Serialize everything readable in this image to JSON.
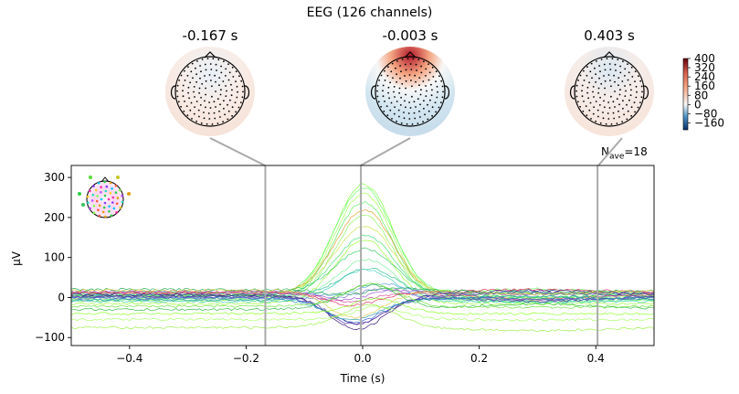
{
  "figure": {
    "suptitle": "EEG (126 channels)",
    "nave_base": "N",
    "nave_sub": "ave",
    "nave_value": "=18"
  },
  "topomaps": [
    {
      "time_label": "-0.167 s",
      "time": -0.167
    },
    {
      "time_label": "-0.003 s",
      "time": -0.003
    },
    {
      "time_label": "0.403 s",
      "time": 0.403
    }
  ],
  "colorbar": {
    "ticks": [
      "400",
      "320",
      "240",
      "160",
      "80",
      "0",
      "−80",
      "−160"
    ],
    "tick_values": [
      400,
      320,
      240,
      160,
      80,
      0,
      -80,
      -160
    ],
    "range": [
      -220,
      400
    ],
    "colors": {
      "low": "#08306b",
      "mid": "#f7f7f7",
      "high": "#67000d"
    }
  },
  "chart_data": {
    "type": "line",
    "title": "EEG (126 channels)",
    "xlabel": "Time (s)",
    "ylabel": "µV",
    "xlim": [
      -0.5,
      0.5
    ],
    "ylim": [
      -120,
      330
    ],
    "x_ticks": [
      -0.4,
      -0.2,
      0.0,
      0.2,
      0.4
    ],
    "x_tick_labels": [
      "−0.4",
      "−0.2",
      "0.0",
      "0.2",
      "0.4"
    ],
    "y_ticks": [
      -100,
      0,
      100,
      200,
      300
    ],
    "y_tick_labels": [
      "−100",
      "0",
      "100",
      "200",
      "300"
    ],
    "vlines": [
      -0.167,
      -0.003,
      0.403
    ],
    "grid": false,
    "series_note_count": 126,
    "series": [
      {
        "color": "#7fff3f",
        "baseline": 5,
        "peak": 305
      },
      {
        "color": "#66ff66",
        "baseline": 8,
        "peak": 290
      },
      {
        "color": "#a4ff4d",
        "baseline": 0,
        "peak": 275
      },
      {
        "color": "#55ee55",
        "baseline": -3,
        "peak": 255
      },
      {
        "color": "#e0a030",
        "baseline": 10,
        "peak": 240
      },
      {
        "color": "#8cf25a",
        "baseline": -8,
        "peak": 225
      },
      {
        "color": "#c8e050",
        "baseline": 12,
        "peak": 200
      },
      {
        "color": "#44dd77",
        "baseline": 6,
        "peak": 180
      },
      {
        "color": "#9bff33",
        "baseline": -15,
        "peak": 165
      },
      {
        "color": "#33cc66",
        "baseline": 14,
        "peak": 140
      },
      {
        "color": "#77ee99",
        "baseline": -5,
        "peak": 120
      },
      {
        "color": "#2fbf8f",
        "baseline": 3,
        "peak": 100
      },
      {
        "color": "#44ccbb",
        "baseline": -10,
        "peak": 85
      },
      {
        "color": "#5aa0e0",
        "baseline": 9,
        "peak": 65
      },
      {
        "color": "#7a6fe0",
        "baseline": -2,
        "peak": 50
      },
      {
        "color": "#a050d0",
        "baseline": 15,
        "peak": 35
      },
      {
        "color": "#d04090",
        "baseline": 11,
        "peak": 20
      },
      {
        "color": "#e03060",
        "baseline": 13,
        "peak": 10
      },
      {
        "color": "#553399",
        "baseline": 4,
        "peak": -35
      },
      {
        "color": "#331177",
        "baseline": 7,
        "peak": -45
      },
      {
        "color": "#5533aa",
        "baseline": 2,
        "peak": -30
      },
      {
        "color": "#3366cc",
        "baseline": -1,
        "peak": -25
      },
      {
        "color": "#2299aa",
        "baseline": -6,
        "peak": -15
      },
      {
        "color": "#22aa55",
        "baseline": 20,
        "peak": 40
      },
      {
        "color": "#33bb44",
        "baseline": -30,
        "peak": 60
      },
      {
        "color": "#88ff22",
        "baseline": -40,
        "peak": 30
      },
      {
        "color": "#aaff66",
        "baseline": -55,
        "peak": 10
      },
      {
        "color": "#99ee44",
        "baseline": -75,
        "peak": 5
      },
      {
        "color": "#66dd33",
        "baseline": -22,
        "peak": 70
      },
      {
        "color": "#ddcc44",
        "baseline": 18,
        "peak": -10
      }
    ]
  }
}
